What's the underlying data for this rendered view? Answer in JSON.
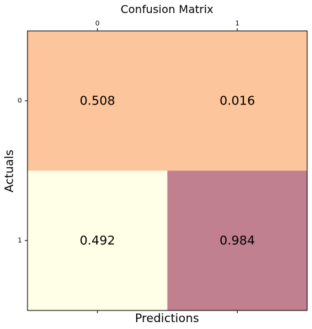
{
  "chart_data": {
    "type": "heatmap",
    "title": "Confusion Matrix",
    "xlabel": "Predictions",
    "ylabel": "Actuals",
    "x_categories": [
      "0",
      "1"
    ],
    "y_categories": [
      "0",
      "1"
    ],
    "x_ticks_position": "top",
    "grid": false,
    "legend": "none",
    "values": [
      [
        0.508,
        0.016
      ],
      [
        0.492,
        0.984
      ]
    ],
    "value_labels": [
      [
        "0.508",
        "0.016"
      ],
      [
        "0.492",
        "0.984"
      ]
    ],
    "cell_colors": [
      [
        "#fdc59b",
        "#fdc59b"
      ],
      [
        "#fffee6",
        "#c08090"
      ]
    ]
  }
}
